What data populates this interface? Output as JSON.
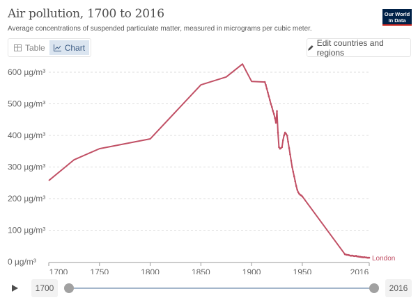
{
  "header": {
    "title": "Air pollution, 1700 to 2016",
    "subtitle": "Average concentrations of suspended particulate matter, measured in micrograms per cubic meter.",
    "logo": "Our World in Data"
  },
  "tabs": [
    {
      "label": "Table",
      "icon": "table-icon",
      "active": false
    },
    {
      "label": "Chart",
      "icon": "line-chart-icon",
      "active": true
    }
  ],
  "edit_button": {
    "label": "Edit countries and regions",
    "icon": "pencil-icon"
  },
  "timeline": {
    "start": "1700",
    "end": "2016",
    "play_icon": "play-icon"
  },
  "chart_data": {
    "type": "line",
    "title": "Air pollution, 1700 to 2016",
    "xlim": [
      1700,
      2016
    ],
    "ylim": [
      0,
      600
    ],
    "x_ticks": [
      "1700",
      "1750",
      "1800",
      "1850",
      "1900",
      "1950",
      "2016"
    ],
    "y_ticks": [
      "0 µg/m³",
      "100 µg/m³",
      "200 µg/m³",
      "300 µg/m³",
      "400 µg/m³",
      "500 µg/m³",
      "600 µg/m³"
    ],
    "y_tick_values": [
      0,
      100,
      200,
      300,
      400,
      500,
      600
    ],
    "grid": "horizontal dashed",
    "color": "#c15065",
    "series": [
      {
        "name": "London",
        "points": [
          [
            1700,
            257
          ],
          [
            1725,
            323
          ],
          [
            1750,
            358
          ],
          [
            1800,
            389
          ],
          [
            1850,
            560
          ],
          [
            1875,
            585
          ],
          [
            1891,
            626
          ],
          [
            1900,
            571
          ],
          [
            1913,
            569
          ],
          [
            1914,
            560
          ],
          [
            1915,
            548
          ],
          [
            1916,
            536
          ],
          [
            1917,
            524
          ],
          [
            1918,
            512
          ],
          [
            1919,
            500
          ],
          [
            1920,
            490
          ],
          [
            1921,
            478
          ],
          [
            1922,
            468
          ],
          [
            1923,
            455
          ],
          [
            1924,
            440
          ],
          [
            1925,
            477
          ],
          [
            1926,
            409
          ],
          [
            1927,
            363
          ],
          [
            1928,
            358
          ],
          [
            1929,
            360
          ],
          [
            1930,
            363
          ],
          [
            1931,
            385
          ],
          [
            1932,
            400
          ],
          [
            1933,
            409
          ],
          [
            1934,
            405
          ],
          [
            1935,
            400
          ],
          [
            1936,
            380
          ],
          [
            1937,
            360
          ],
          [
            1938,
            340
          ],
          [
            1939,
            320
          ],
          [
            1940,
            300
          ],
          [
            1941,
            285
          ],
          [
            1942,
            270
          ],
          [
            1943,
            255
          ],
          [
            1944,
            240
          ],
          [
            1945,
            228
          ],
          [
            1946,
            220
          ],
          [
            1947,
            215
          ],
          [
            1948,
            212
          ],
          [
            1949,
            210
          ],
          [
            1950,
            207
          ],
          [
            1992,
            24
          ],
          [
            1993,
            23
          ],
          [
            1994,
            22
          ],
          [
            1995,
            22
          ],
          [
            1996,
            21
          ],
          [
            1997,
            20
          ],
          [
            1998,
            19
          ],
          [
            1999,
            20
          ],
          [
            2000,
            19
          ],
          [
            2001,
            18
          ],
          [
            2002,
            18
          ],
          [
            2003,
            19
          ],
          [
            2004,
            17
          ],
          [
            2005,
            17
          ],
          [
            2006,
            16
          ],
          [
            2007,
            16
          ],
          [
            2008,
            15
          ],
          [
            2009,
            15
          ],
          [
            2010,
            14
          ],
          [
            2011,
            15
          ],
          [
            2012,
            14
          ],
          [
            2013,
            14
          ],
          [
            2014,
            13
          ],
          [
            2015,
            13
          ],
          [
            2016,
            13
          ]
        ]
      }
    ]
  }
}
